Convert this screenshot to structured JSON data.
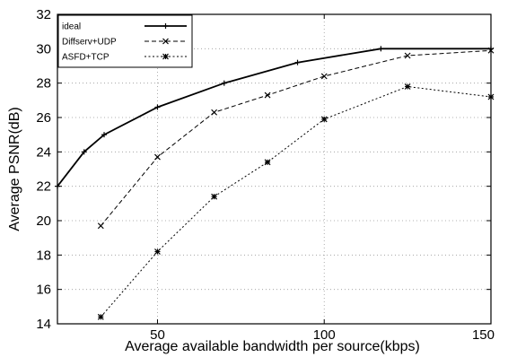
{
  "chart_data": {
    "type": "line",
    "title": "",
    "xlabel": "Average available bandwidth per source(kbps)",
    "ylabel": "Average PSNR(dB)",
    "xlim": [
      20,
      150
    ],
    "ylim": [
      14,
      32
    ],
    "xticks": [
      50,
      100,
      150
    ],
    "yticks": [
      14,
      16,
      18,
      20,
      22,
      24,
      26,
      28,
      30,
      32
    ],
    "grid": true,
    "legend_position": "top-left",
    "series": [
      {
        "name": "ideal",
        "style": "solid",
        "marker": "plus",
        "color": "#000000",
        "x": [
          20,
          28,
          34,
          50,
          70,
          92,
          117,
          150
        ],
        "y": [
          22.0,
          24.0,
          25.0,
          26.6,
          28.0,
          29.2,
          30.0,
          30.0
        ]
      },
      {
        "name": "Diffserv+UDP",
        "style": "dashed",
        "marker": "x",
        "color": "#000000",
        "x": [
          33,
          50,
          67,
          83,
          100,
          125,
          150
        ],
        "y": [
          19.7,
          23.7,
          26.3,
          27.3,
          28.4,
          29.6,
          29.9
        ]
      },
      {
        "name": "ASFD+TCP",
        "style": "dotted",
        "marker": "star",
        "color": "#000000",
        "x": [
          33,
          50,
          67,
          83,
          100,
          125,
          150
        ],
        "y": [
          14.4,
          18.2,
          21.4,
          23.4,
          25.9,
          27.8,
          27.2
        ]
      }
    ]
  }
}
